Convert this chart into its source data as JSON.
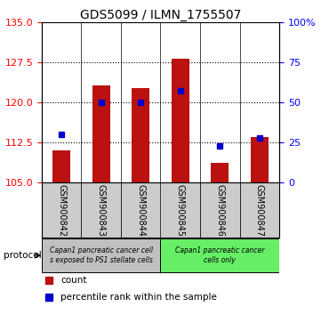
{
  "title": "GDS5099 / ILMN_1755507",
  "samples": [
    "GSM900842",
    "GSM900843",
    "GSM900844",
    "GSM900845",
    "GSM900846",
    "GSM900847"
  ],
  "count_values": [
    111.0,
    123.2,
    122.7,
    128.2,
    108.7,
    113.5
  ],
  "percentile_values": [
    30,
    50,
    50,
    57,
    23,
    28
  ],
  "ylim_left": [
    105,
    135
  ],
  "ylim_right": [
    0,
    100
  ],
  "yticks_left": [
    105,
    112.5,
    120,
    127.5,
    135
  ],
  "yticks_right": [
    0,
    25,
    50,
    75,
    100
  ],
  "bar_color": "#bb1111",
  "square_color": "#0000cc",
  "bar_bottom": 105,
  "group0_samples": [
    0,
    1,
    2
  ],
  "group0_label_line1": "Capan1 pancreatic cancer cell",
  "group0_label_line2": "s exposed to PS1 stellate cells",
  "group0_color": "#c0c0c0",
  "group1_samples": [
    3,
    4,
    5
  ],
  "group1_label_line1": "Capan1 pancreatic cancer",
  "group1_label_line2": "cells only",
  "group1_color": "#66ee66",
  "protocol_label": "protocol",
  "legend_count_color": "#bb1111",
  "legend_pct_color": "#0000cc",
  "legend_count_label": "count",
  "legend_pct_label": "percentile rank within the sample",
  "bar_width": 0.45,
  "title_fontsize": 10,
  "tick_fontsize": 8,
  "sample_fontsize": 7
}
